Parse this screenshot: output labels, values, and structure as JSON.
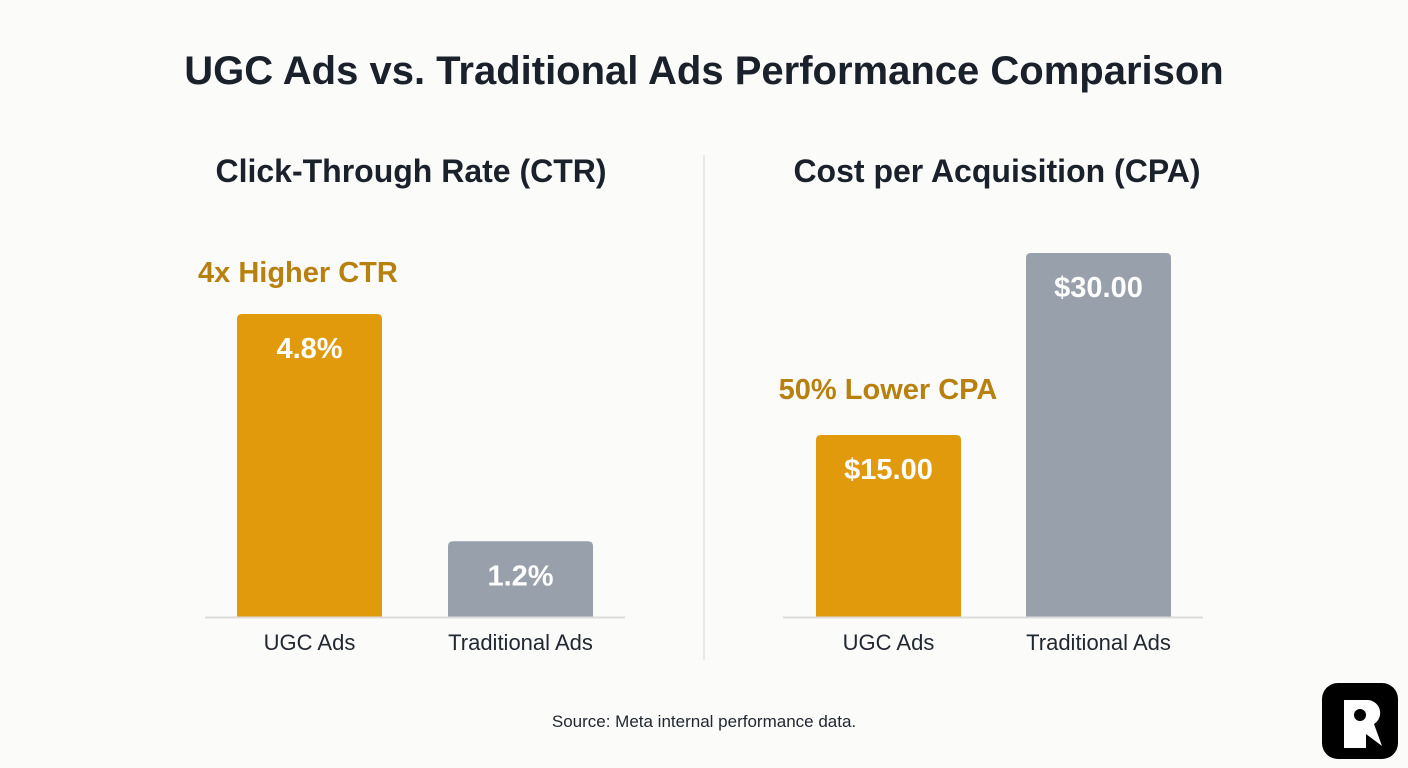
{
  "title": "UGC Ads vs. Traditional Ads Performance Comparison",
  "source": "Source: Meta internal performance data.",
  "colors": {
    "ugc": "#e09a0c",
    "traditional": "#98a0ac",
    "annotation": "#b8800f",
    "logo": "#000000"
  },
  "logo": {
    "icon": "r-letter-logo",
    "text": "R"
  },
  "chart_data": [
    {
      "type": "bar",
      "title": "Click-Through Rate (CTR)",
      "categories": [
        "UGC Ads",
        "Traditional Ads"
      ],
      "values": [
        4.8,
        1.2
      ],
      "value_labels": [
        "4.8%",
        "1.2%"
      ],
      "annotation": "4x Higher CTR",
      "ylim": [
        0,
        4.8
      ],
      "grid": false
    },
    {
      "type": "bar",
      "title": "Cost per Acquisition (CPA)",
      "categories": [
        "UGC Ads",
        "Traditional Ads"
      ],
      "values": [
        15.0,
        30.0
      ],
      "value_labels": [
        "$15.00",
        "$30.00"
      ],
      "annotation": "50% Lower CPA",
      "ylim": [
        0,
        30
      ],
      "grid": false
    }
  ]
}
